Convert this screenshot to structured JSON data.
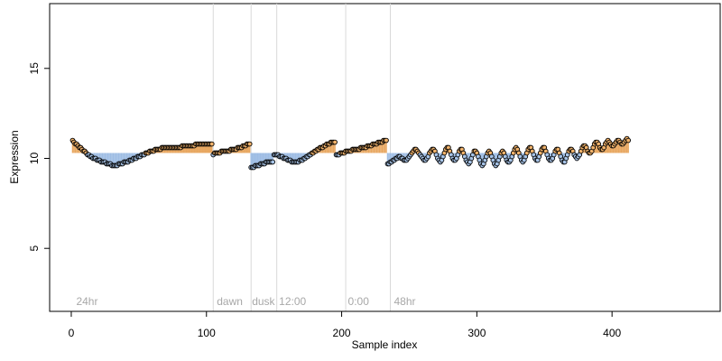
{
  "chart_data": {
    "type": "scatter",
    "title": "",
    "xlabel": "Sample index",
    "ylabel": "Expression",
    "xlim": [
      -16,
      480
    ],
    "ylim": [
      1.5,
      18.6
    ],
    "x_ticks": [
      0,
      100,
      200,
      300,
      400
    ],
    "x_tick_labels": [
      "0",
      "100",
      "200",
      "300",
      "400"
    ],
    "y_ticks": [
      5,
      10,
      15
    ],
    "y_tick_labels": [
      "5",
      "10",
      "15"
    ],
    "grid": false,
    "legend": "none",
    "colors": {
      "point_fill_low": "#a7c4e8",
      "point_fill_high": "#f2b36b",
      "point_stroke": "#000000",
      "segment_low": "#9ebde4",
      "segment_high": "#e8a760",
      "vline": "#d9d9d9",
      "annotation": "#a8a8a8"
    },
    "baseline": 10.3,
    "vlines": [
      105,
      133,
      152,
      203,
      236
    ],
    "annotations": [
      {
        "x": 3,
        "text": "24hr"
      },
      {
        "x": 107,
        "text": "dawn"
      },
      {
        "x": 133,
        "text": "dusk"
      },
      {
        "x": 153,
        "text": "12:00"
      },
      {
        "x": 204,
        "text": "0:00"
      },
      {
        "x": 238,
        "text": "48hr"
      }
    ],
    "series": [
      {
        "x_start": 1,
        "x_step": 1,
        "y": [
          11.0,
          10.9,
          10.8,
          10.8,
          10.7,
          10.6,
          10.6,
          10.5,
          10.4,
          10.4,
          10.3,
          10.2,
          10.2,
          10.1,
          10.1,
          10.0,
          10.0,
          10.0,
          9.9,
          9.9,
          9.9,
          9.8,
          9.8,
          9.8,
          9.8,
          9.7,
          9.7,
          9.7,
          9.7,
          9.6,
          9.6,
          9.6,
          9.6,
          9.6,
          9.7,
          9.7,
          9.7,
          9.7,
          9.8,
          9.8,
          9.8,
          9.8,
          9.9,
          9.9,
          9.9,
          10.0,
          10.0,
          10.0,
          10.1,
          10.1,
          10.1,
          10.2,
          10.2,
          10.2,
          10.3,
          10.3,
          10.3,
          10.4,
          10.4,
          10.4,
          10.4,
          10.5,
          10.5,
          10.5,
          10.5,
          10.5,
          10.6,
          10.6,
          10.6,
          10.6,
          10.6,
          10.6,
          10.6,
          10.6,
          10.6,
          10.6,
          10.6,
          10.6,
          10.6,
          10.6,
          10.6,
          10.7,
          10.7,
          10.7,
          10.7,
          10.7,
          10.7,
          10.7,
          10.7,
          10.7,
          10.7,
          10.8,
          10.8,
          10.8,
          10.8,
          10.8,
          10.8,
          10.8,
          10.8,
          10.8,
          10.8,
          10.8,
          10.8,
          10.8,
          10.2,
          10.3,
          10.3,
          10.3,
          10.3,
          10.3,
          10.4,
          10.4,
          10.4,
          10.4,
          10.4,
          10.4,
          10.4,
          10.5,
          10.5,
          10.5,
          10.5,
          10.5,
          10.6,
          10.6,
          10.6,
          10.6,
          10.7,
          10.7,
          10.7,
          10.8,
          10.8,
          10.8,
          9.5,
          9.5,
          9.5,
          9.6,
          9.6,
          9.6,
          9.6,
          9.7,
          9.7,
          9.7,
          9.7,
          9.8,
          9.8,
          9.8,
          9.8,
          9.8,
          9.8,
          10.2,
          10.2,
          10.2,
          10.2,
          10.1,
          10.1,
          10.1,
          10.0,
          10.0,
          10.0,
          9.9,
          9.9,
          9.9,
          9.8,
          9.8,
          9.8,
          9.8,
          9.8,
          9.8,
          9.9,
          9.9,
          9.9,
          10.0,
          10.0,
          10.1,
          10.1,
          10.2,
          10.2,
          10.3,
          10.3,
          10.4,
          10.4,
          10.5,
          10.5,
          10.6,
          10.6,
          10.6,
          10.7,
          10.7,
          10.8,
          10.8,
          10.8,
          10.9,
          10.9,
          10.9,
          10.9,
          10.2,
          10.2,
          10.2,
          10.3,
          10.3,
          10.3,
          10.3,
          10.4,
          10.4,
          10.4,
          10.4,
          10.4,
          10.5,
          10.5,
          10.5,
          10.5,
          10.5,
          10.5,
          10.6,
          10.6,
          10.6,
          10.6,
          10.6,
          10.7,
          10.7,
          10.7,
          10.7,
          10.8,
          10.8,
          10.8,
          10.8,
          10.9,
          10.9,
          10.9,
          10.9,
          11.0,
          11.0,
          11.0,
          9.7,
          9.7,
          9.8,
          9.8,
          9.9,
          9.9,
          10.0,
          10.0,
          10.1,
          10.1,
          10.0,
          10.0,
          9.9,
          9.9,
          9.9,
          10.0,
          10.1,
          10.2,
          10.3,
          10.4,
          10.5,
          10.5,
          10.4,
          10.3,
          10.2,
          10.1,
          10.0,
          9.9,
          9.9,
          10.0,
          10.1,
          10.3,
          10.4,
          10.5,
          10.5,
          10.4,
          10.2,
          10.0,
          9.9,
          9.8,
          9.9,
          10.1,
          10.3,
          10.5,
          10.6,
          10.6,
          10.4,
          10.2,
          10.0,
          9.9,
          9.9,
          10.0,
          10.2,
          10.4,
          10.5,
          10.5,
          10.3,
          10.1,
          9.9,
          9.8,
          9.7,
          9.8,
          10.0,
          10.2,
          10.4,
          10.4,
          10.3,
          10.1,
          9.9,
          9.7,
          9.6,
          9.7,
          9.9,
          10.1,
          10.3,
          10.4,
          10.3,
          10.1,
          9.9,
          9.7,
          9.6,
          9.7,
          9.9,
          10.1,
          10.3,
          10.4,
          10.3,
          10.1,
          9.9,
          9.8,
          9.8,
          9.9,
          10.1,
          10.3,
          10.5,
          10.6,
          10.5,
          10.3,
          10.1,
          9.9,
          9.8,
          9.9,
          10.1,
          10.3,
          10.5,
          10.6,
          10.6,
          10.4,
          10.2,
          10.0,
          9.9,
          9.9,
          10.1,
          10.3,
          10.5,
          10.6,
          10.6,
          10.4,
          10.2,
          10.0,
          9.9,
          9.9,
          10.0,
          10.2,
          10.4,
          10.5,
          10.5,
          10.3,
          10.1,
          9.9,
          9.8,
          9.8,
          10.0,
          10.2,
          10.4,
          10.5,
          10.5,
          10.4,
          10.2,
          10.1,
          10.0,
          10.1,
          10.2,
          10.4,
          10.6,
          10.7,
          10.7,
          10.6,
          10.4,
          10.3,
          10.3,
          10.4,
          10.6,
          10.8,
          10.9,
          10.9,
          10.8,
          10.6,
          10.5,
          10.5,
          10.6,
          10.8,
          10.9,
          11.0,
          10.9,
          10.8,
          10.7,
          10.7,
          10.8,
          10.9,
          11.0,
          11.0,
          10.9,
          10.8,
          10.8,
          10.9,
          11.0,
          11.1,
          11.0
        ]
      }
    ]
  }
}
